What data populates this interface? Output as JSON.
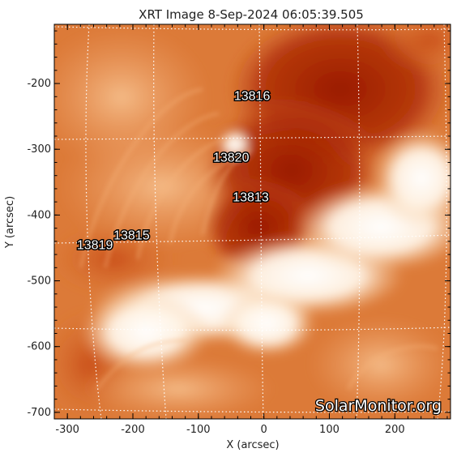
{
  "figure": {
    "title": "XRT Image   8-Sep-2024 06:05:39.505",
    "watermark": "SolarMonitor.org"
  },
  "axes": {
    "x": {
      "label": "X (arcsec)",
      "range": [
        -320,
        285
      ],
      "ticks": [
        {
          "value": -300,
          "label": "-300"
        },
        {
          "value": -200,
          "label": "-200"
        },
        {
          "value": -100,
          "label": "-100"
        },
        {
          "value": 0,
          "label": "0"
        },
        {
          "value": 100,
          "label": "100"
        },
        {
          "value": 200,
          "label": "200"
        }
      ]
    },
    "y": {
      "label": "Y (arcsec)",
      "range": [
        -710,
        -110
      ],
      "ticks": [
        {
          "value": -200,
          "label": "-200"
        },
        {
          "value": -300,
          "label": "-300"
        },
        {
          "value": -400,
          "label": "-400"
        },
        {
          "value": -500,
          "label": "-500"
        },
        {
          "value": -600,
          "label": "-600"
        },
        {
          "value": -700,
          "label": "-700"
        }
      ]
    }
  },
  "active_regions": [
    {
      "number": "13816",
      "x": -18,
      "y": -225
    },
    {
      "number": "13820",
      "x": -50,
      "y": -319
    },
    {
      "number": "13813",
      "x": -20,
      "y": -379
    },
    {
      "number": "13815",
      "x": -202,
      "y": -437
    },
    {
      "number": "13819",
      "x": -258,
      "y": -452
    }
  ],
  "colors": {
    "colormap": "hinode-xrt (orange)",
    "grid": "#ffffff",
    "frame": "#000000"
  }
}
